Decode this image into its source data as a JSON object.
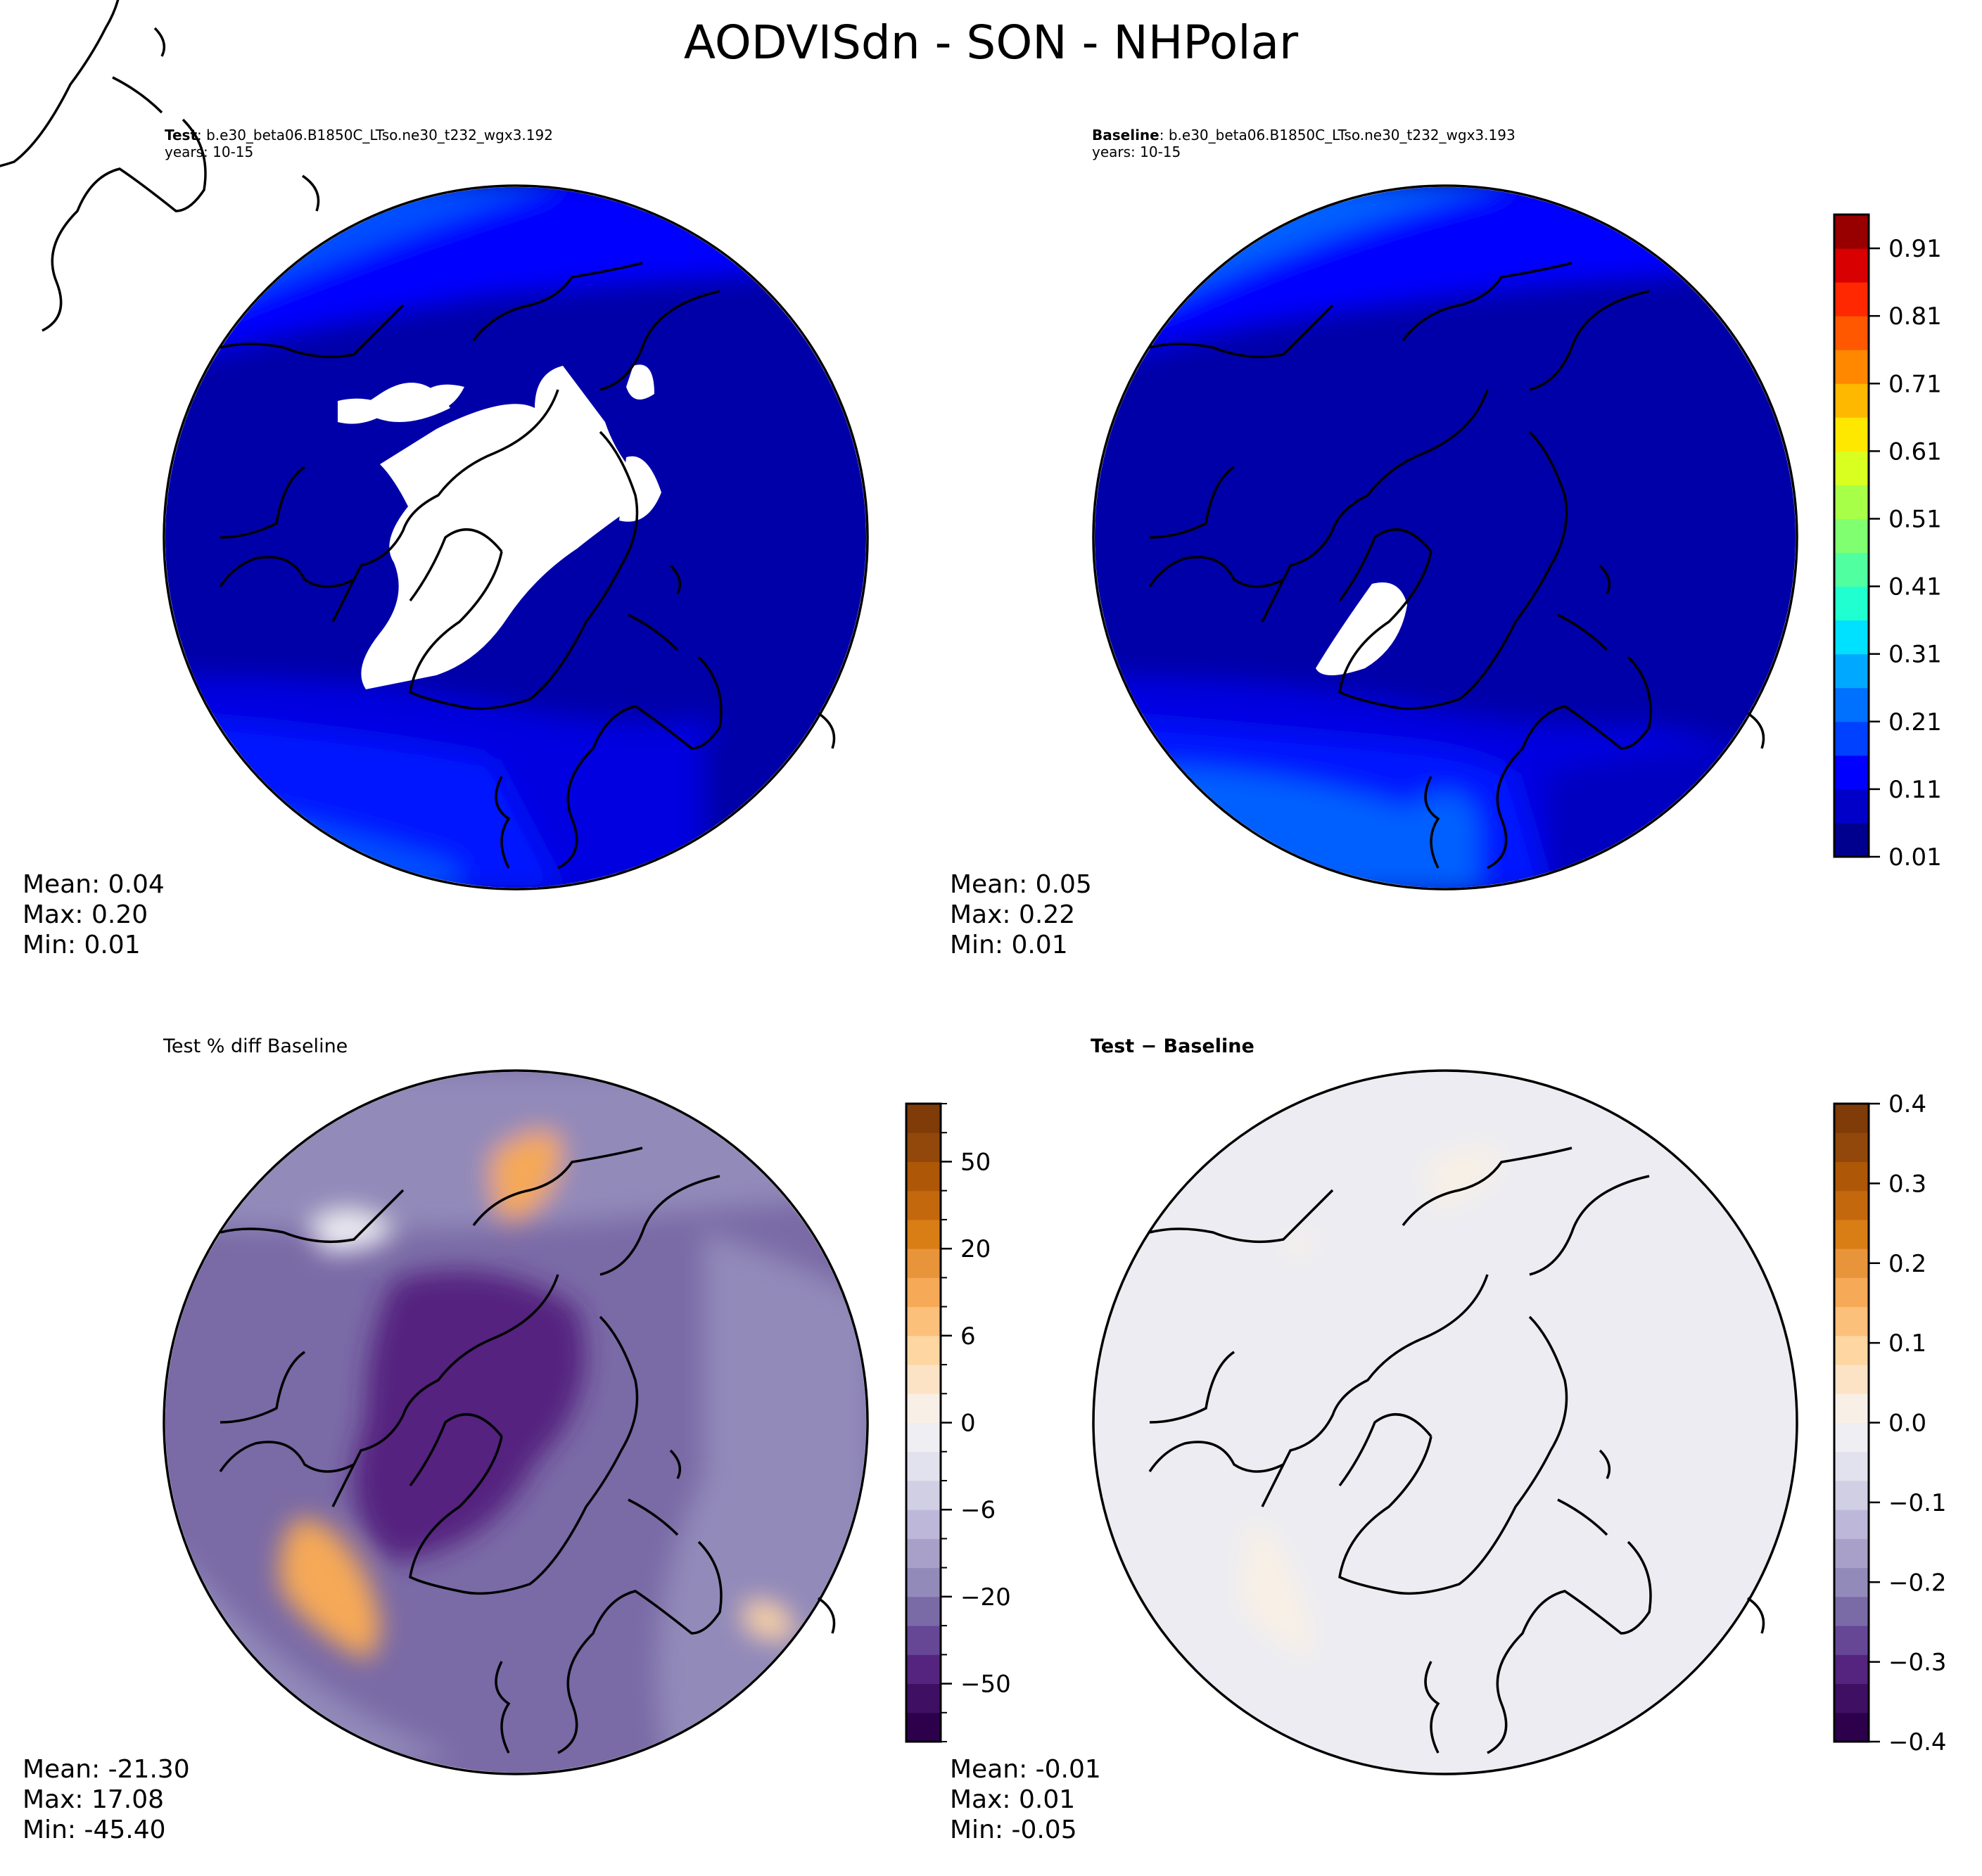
{
  "figure": {
    "title": "AODVISdn - SON - NHPolar"
  },
  "panels": [
    {
      "title_bold": "Test",
      "title_rest": ": b.e30_beta06.B1850C_LTso.ne30_t232_wgx3.192",
      "subtitle": "years: 10-15",
      "stats": {
        "mean": "Mean:  0.04",
        "max": "Max:  0.20",
        "min": "Min:  0.01"
      }
    },
    {
      "title_bold": "Baseline",
      "title_rest": ": b.e30_beta06.B1850C_LTso.ne30_t232_wgx3.193",
      "subtitle": "years: 10-15",
      "stats": {
        "mean": "Mean:  0.05",
        "max": "Max:  0.22",
        "min": "Min:  0.01"
      }
    },
    {
      "title": "Test % diff Baseline",
      "stats": {
        "mean": "Mean: -21.30",
        "max": "Max: 17.08",
        "min": "Min: -45.40"
      }
    },
    {
      "title": "Test − Baseline",
      "stats": {
        "mean": "Mean: -0.01",
        "max": "Max:  0.01",
        "min": "Min: -0.05"
      }
    }
  ],
  "chart_data": [
    {
      "type": "heatmap",
      "name": "test-map",
      "projection": "north-polar-stereographic",
      "colorbar": "shared-jet",
      "field_summary": {
        "mean": 0.04,
        "max": 0.2,
        "min": 0.01
      }
    },
    {
      "type": "heatmap",
      "name": "baseline-map",
      "projection": "north-polar-stereographic",
      "colorbar": "shared-jet",
      "field_summary": {
        "mean": 0.05,
        "max": 0.22,
        "min": 0.01
      }
    },
    {
      "type": "heatmap",
      "name": "pct-diff-map",
      "projection": "north-polar-stereographic",
      "field_summary": {
        "mean": -21.3,
        "max": 17.08,
        "min": -45.4
      }
    },
    {
      "type": "heatmap",
      "name": "abs-diff-map",
      "projection": "north-polar-stereographic",
      "field_summary": {
        "mean": -0.01,
        "max": 0.01,
        "min": -0.05
      }
    }
  ],
  "colorbars": {
    "jet": {
      "tick_labels": [
        "0.01",
        "0.11",
        "0.21",
        "0.31",
        "0.41",
        "0.51",
        "0.61",
        "0.71",
        "0.81",
        "0.91"
      ],
      "colors": [
        "#00008f",
        "#0000c8",
        "#0000ff",
        "#0040ff",
        "#0070ff",
        "#00a8ff",
        "#00e0ff",
        "#20ffd0",
        "#50ffa0",
        "#80ff70",
        "#a8ff48",
        "#d8ff20",
        "#ffe800",
        "#ffb800",
        "#ff8800",
        "#ff5800",
        "#ff2800",
        "#d80000",
        "#980000"
      ]
    },
    "pctdiff": {
      "tick_labels": [
        "−50",
        "−20",
        "−6",
        "0",
        "6",
        "20",
        "50"
      ],
      "tick_band_index": [
        2,
        5,
        8,
        11,
        14,
        17,
        20
      ],
      "colors": [
        "#2d004b",
        "#3f0f63",
        "#54247f",
        "#654796",
        "#7a6aa6",
        "#928ab9",
        "#a9a0ca",
        "#bdb8da",
        "#d0cfe4",
        "#e2e2ee",
        "#eeeef3",
        "#f8f0e6",
        "#fde3c6",
        "#fed6a2",
        "#fbc07a",
        "#f6a956",
        "#e8943a",
        "#d97d15",
        "#c3680c",
        "#ad5707",
        "#92480a",
        "#7f3b08"
      ]
    },
    "absdiff": {
      "tick_labels": [
        "−0.4",
        "−0.3",
        "−0.2",
        "−0.1",
        "0.0",
        "0.1",
        "0.2",
        "0.3",
        "0.4"
      ],
      "colors": [
        "#2d004b",
        "#3f0f63",
        "#54247f",
        "#654796",
        "#7a6aa6",
        "#928ab9",
        "#a9a0ca",
        "#bdb8da",
        "#d0cfe4",
        "#e2e2ee",
        "#eeeef3",
        "#f8f0e6",
        "#fde3c6",
        "#fed6a2",
        "#fbc07a",
        "#f6a956",
        "#e8943a",
        "#d97d15",
        "#c3680c",
        "#ad5707",
        "#92480a",
        "#7f3b08"
      ]
    }
  }
}
